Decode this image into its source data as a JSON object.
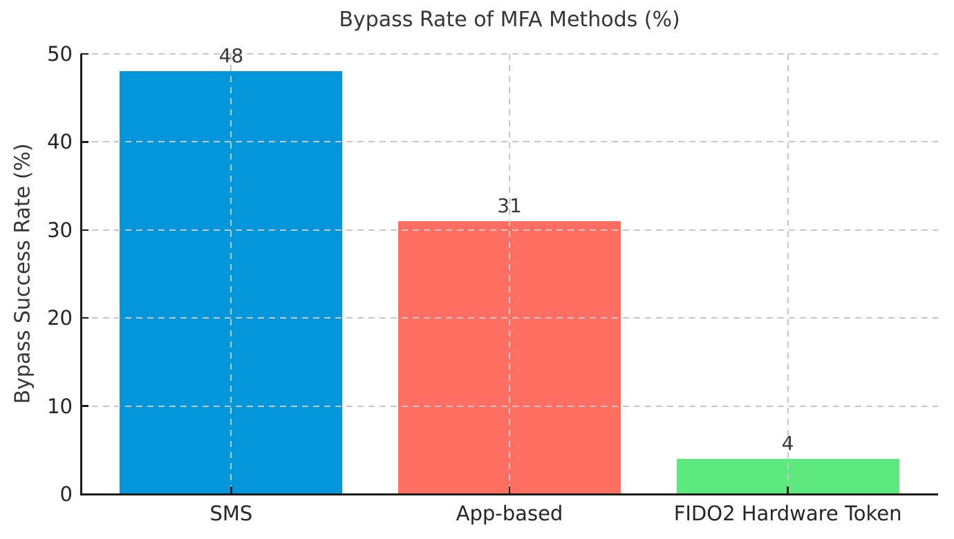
{
  "chart_data": {
    "type": "bar",
    "title": "Bypass Rate of MFA Methods (%)",
    "xlabel": "",
    "ylabel": "Bypass Success Rate (%)",
    "categories": [
      "SMS",
      "App-based",
      "FIDO2 Hardware Token"
    ],
    "values": [
      48,
      31,
      4
    ],
    "bar_value_labels": [
      "48",
      "31",
      "4"
    ],
    "bar_colors": [
      "#0496DB",
      "#FF6F61",
      "#5DE97D"
    ],
    "ylim": [
      0,
      50
    ],
    "yticks": [
      0,
      10,
      20,
      30,
      40,
      50
    ],
    "bar_width_fraction": 0.8,
    "grid": {
      "visible": true,
      "linestyle": "dashed",
      "axes": "both",
      "color": "#C7C7C7",
      "drawn_above_bars": true
    },
    "legend": {
      "visible": false
    },
    "colors": {
      "spine": "#1C1C1C",
      "tick_text": "#262626",
      "title_text": "#363636",
      "background": "#FFFFFF"
    }
  }
}
